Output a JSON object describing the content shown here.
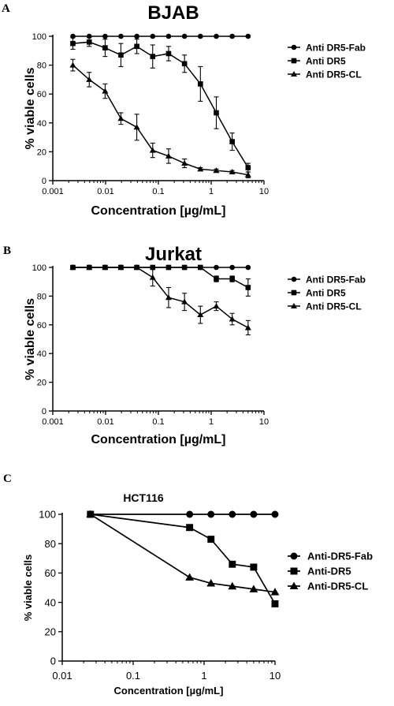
{
  "chart_data": [
    {
      "type": "line",
      "panel": "A",
      "title": "BJAB",
      "xlabel": "Concentration [µg/mL]",
      "ylabel": "% viable cells",
      "x_scale": "log",
      "xlim": [
        0.001,
        10
      ],
      "ylim": [
        0,
        100
      ],
      "x_ticks": [
        0.001,
        0.01,
        0.1,
        1,
        10
      ],
      "x_tick_labels": [
        "0.001",
        "0.01",
        "0.1",
        "1",
        "10"
      ],
      "y_ticks": [
        0,
        20,
        40,
        60,
        80,
        100
      ],
      "y_tick_labels": [
        "0",
        "20",
        "40",
        "60",
        "80",
        "100"
      ],
      "legend": "right",
      "grid": false,
      "series": [
        {
          "name": "Anti DR5-Fab",
          "marker": "circle",
          "x": [
            0.0024,
            0.0049,
            0.0098,
            0.0195,
            0.039,
            0.078,
            0.156,
            0.3125,
            0.625,
            1.25,
            2.5,
            5
          ],
          "y": [
            100,
            100,
            100,
            100,
            100,
            100,
            100,
            100,
            100,
            100,
            100,
            100
          ],
          "err": [
            0,
            0,
            0,
            0,
            0,
            0,
            0,
            0,
            0,
            0,
            0,
            0
          ]
        },
        {
          "name": "Anti DR5",
          "marker": "square",
          "x": [
            0.0024,
            0.0049,
            0.0098,
            0.0195,
            0.039,
            0.078,
            0.156,
            0.3125,
            0.625,
            1.25,
            2.5,
            5
          ],
          "y": [
            95,
            96,
            92,
            87,
            93,
            86,
            88,
            81,
            67,
            47,
            27,
            9
          ],
          "err": [
            4,
            3,
            6,
            8,
            5,
            8,
            5,
            6,
            12,
            11,
            6,
            3
          ]
        },
        {
          "name": "Anti DR5-CL",
          "marker": "triangle",
          "x": [
            0.0024,
            0.0049,
            0.0098,
            0.0195,
            0.039,
            0.078,
            0.156,
            0.3125,
            0.625,
            1.25,
            2.5,
            5
          ],
          "y": [
            80,
            70,
            62,
            43,
            37,
            21,
            17,
            12,
            8,
            7,
            6,
            4
          ],
          "err": [
            4,
            5,
            5,
            4,
            9,
            5,
            5,
            3,
            1,
            1,
            1,
            2
          ]
        }
      ]
    },
    {
      "type": "line",
      "panel": "B",
      "title": "Jurkat",
      "xlabel": "Concentration [µg/mL]",
      "ylabel": "% viable cells",
      "x_scale": "log",
      "xlim": [
        0.001,
        10
      ],
      "ylim": [
        0,
        100
      ],
      "x_ticks": [
        0.001,
        0.01,
        0.1,
        1,
        10
      ],
      "x_tick_labels": [
        "0.001",
        "0.01",
        "0.1",
        "1",
        "10"
      ],
      "y_ticks": [
        0,
        20,
        40,
        60,
        80,
        100
      ],
      "y_tick_labels": [
        "0",
        "20",
        "40",
        "60",
        "80",
        "100"
      ],
      "legend": "right",
      "grid": false,
      "series": [
        {
          "name": "Anti DR5-Fab",
          "marker": "circle",
          "x": [
            0.0024,
            0.0049,
            0.0098,
            0.0195,
            0.039,
            0.078,
            0.156,
            0.3125,
            0.625,
            1.25,
            2.5,
            5
          ],
          "y": [
            100,
            100,
            100,
            100,
            100,
            100,
            100,
            100,
            100,
            100,
            100,
            100
          ],
          "err": [
            0,
            0,
            0,
            0,
            0,
            0,
            0,
            0,
            0,
            0,
            0,
            0
          ]
        },
        {
          "name": "Anti DR5",
          "marker": "square",
          "x": [
            0.0024,
            0.0049,
            0.0098,
            0.0195,
            0.039,
            0.078,
            0.156,
            0.3125,
            0.625,
            1.25,
            2.5,
            5
          ],
          "y": [
            100,
            100,
            100,
            100,
            100,
            100,
            100,
            100,
            100,
            92,
            92,
            86
          ],
          "err": [
            0,
            0,
            0,
            0,
            0,
            0,
            0,
            0,
            0,
            2,
            2,
            6
          ]
        },
        {
          "name": "Anti DR5-CL",
          "marker": "triangle",
          "x": [
            0.0024,
            0.0049,
            0.0098,
            0.0195,
            0.039,
            0.078,
            0.156,
            0.3125,
            0.625,
            1.25,
            2.5,
            5
          ],
          "y": [
            100,
            100,
            100,
            100,
            100,
            93,
            79,
            76,
            67,
            73,
            64,
            58
          ],
          "err": [
            0,
            0,
            0,
            0,
            0,
            6,
            7,
            6,
            6,
            3,
            4,
            5
          ]
        }
      ]
    },
    {
      "type": "line",
      "panel": "C",
      "title": "HCT116",
      "xlabel": "Concentration [µg/mL]",
      "ylabel": "% viable cells",
      "x_scale": "log",
      "xlim": [
        0.01,
        10
      ],
      "ylim": [
        0,
        100
      ],
      "x_ticks": [
        0.01,
        0.1,
        1,
        10
      ],
      "x_tick_labels": [
        "0.01",
        "0.1",
        "1",
        "10"
      ],
      "y_ticks": [
        0,
        20,
        40,
        60,
        80,
        100
      ],
      "y_tick_labels": [
        "0",
        "20",
        "40",
        "60",
        "80",
        "100"
      ],
      "legend": "right",
      "grid": false,
      "series": [
        {
          "name": "Anti-DR5-Fab",
          "marker": "circle",
          "x": [
            0.025,
            0.625,
            1.25,
            2.5,
            5,
            10
          ],
          "y": [
            100,
            100,
            100,
            100,
            100,
            100
          ]
        },
        {
          "name": "Anti-DR5",
          "marker": "square",
          "x": [
            0.025,
            0.625,
            1.25,
            2.5,
            5,
            10
          ],
          "y": [
            100,
            91,
            83,
            66,
            64,
            39
          ]
        },
        {
          "name": "Anti-DR5-CL",
          "marker": "triangle",
          "x": [
            0.025,
            0.625,
            1.25,
            2.5,
            5,
            10
          ],
          "y": [
            100,
            57,
            53,
            51,
            49,
            47
          ]
        }
      ]
    }
  ]
}
